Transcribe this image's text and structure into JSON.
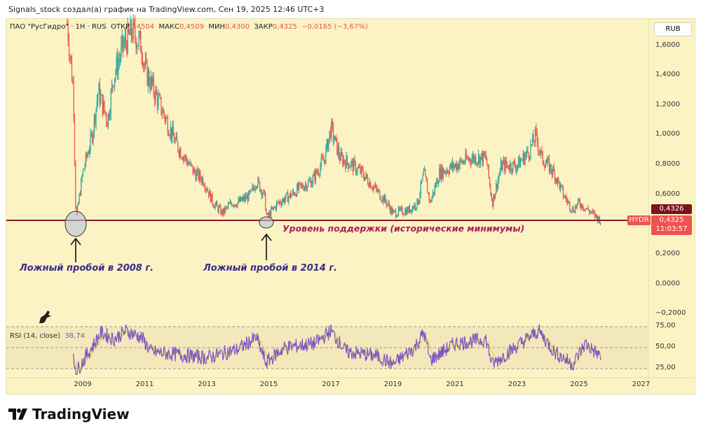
{
  "credit": "Signals_stock создал(а) график на TradingView.com, Сен 19, 2025 12:46 UTC+3",
  "legend": {
    "symbol": "ПАО \"РусГидро\" · 1H · RUS",
    "open_label": "ОТКР",
    "open": "0,4504",
    "high_label": "МАКС",
    "high": "0,4509",
    "low_label": "МИН",
    "low": "0,4300",
    "close_label": "ЗАКР",
    "close": "0,4325",
    "change": "−0,0165 (−3,67%)"
  },
  "currency": "RUB",
  "price_ticks": [
    "1,6000",
    "1,4000",
    "1,2000",
    "1,0000",
    "0,8000",
    "0,6000",
    "0,2000",
    "0,0000",
    "−0,2000"
  ],
  "last_price_prev": "0,4326",
  "ticker_tag": "HYDR",
  "last_price": "0,4325",
  "countdown": "11:03:57",
  "rsi": {
    "label": "RSI (14, close)",
    "value": "38,74",
    "ticks": [
      "75,00",
      "50,00",
      "25,00"
    ]
  },
  "time_ticks": [
    "2009",
    "2011",
    "2013",
    "2015",
    "2017",
    "2019",
    "2021",
    "2023",
    "2025",
    "2027"
  ],
  "annotations": {
    "false_break_2008": "Ложный пробой в 2008 г.",
    "false_break_2014": "Ложный пробой в 2014 г.",
    "support": "Уровень поддержки (исторические минимумы)"
  },
  "brand": "TradingView",
  "colors": {
    "up": "#26a69a",
    "down": "#ef5350",
    "support": "#8b1a2a",
    "rsi": "#7e57c2",
    "rsi_ma": "#f3c623"
  },
  "chart_data": {
    "type": "line",
    "title": "ПАО \"РусГидро\" 1H",
    "ylim": [
      -0.25,
      1.75
    ],
    "support_level": 0.4325,
    "series": [
      {
        "name": "price",
        "points": [
          [
            2008.5,
            1.75
          ],
          [
            2008.7,
            1.3
          ],
          [
            2008.78,
            0.43
          ],
          [
            2009.0,
            0.75
          ],
          [
            2009.3,
            1.0
          ],
          [
            2009.5,
            1.3
          ],
          [
            2009.8,
            1.1
          ],
          [
            2010.0,
            1.4
          ],
          [
            2010.3,
            1.6
          ],
          [
            2010.6,
            1.7
          ],
          [
            2010.9,
            1.6
          ],
          [
            2011.0,
            1.45
          ],
          [
            2011.4,
            1.25
          ],
          [
            2011.8,
            1.05
          ],
          [
            2012.0,
            0.95
          ],
          [
            2012.3,
            0.85
          ],
          [
            2012.6,
            0.75
          ],
          [
            2012.9,
            0.7
          ],
          [
            2013.2,
            0.55
          ],
          [
            2013.5,
            0.48
          ],
          [
            2013.8,
            0.55
          ],
          [
            2014.0,
            0.55
          ],
          [
            2014.4,
            0.6
          ],
          [
            2014.6,
            0.7
          ],
          [
            2014.85,
            0.6
          ],
          [
            2014.93,
            0.45
          ],
          [
            2015.3,
            0.55
          ],
          [
            2015.7,
            0.6
          ],
          [
            2016.0,
            0.65
          ],
          [
            2016.4,
            0.7
          ],
          [
            2016.8,
            0.85
          ],
          [
            2017.0,
            1.05
          ],
          [
            2017.3,
            0.85
          ],
          [
            2017.7,
            0.8
          ],
          [
            2018.0,
            0.75
          ],
          [
            2018.4,
            0.65
          ],
          [
            2018.8,
            0.55
          ],
          [
            2019.0,
            0.48
          ],
          [
            2019.5,
            0.5
          ],
          [
            2019.8,
            0.55
          ],
          [
            2020.0,
            0.75
          ],
          [
            2020.2,
            0.55
          ],
          [
            2020.5,
            0.75
          ],
          [
            2021.0,
            0.8
          ],
          [
            2021.5,
            0.85
          ],
          [
            2022.0,
            0.85
          ],
          [
            2022.2,
            0.55
          ],
          [
            2022.5,
            0.8
          ],
          [
            2023.0,
            0.8
          ],
          [
            2023.4,
            0.9
          ],
          [
            2023.6,
            1.0
          ],
          [
            2023.8,
            0.85
          ],
          [
            2024.2,
            0.75
          ],
          [
            2024.5,
            0.6
          ],
          [
            2024.8,
            0.5
          ],
          [
            2025.0,
            0.55
          ],
          [
            2025.3,
            0.5
          ],
          [
            2025.7,
            0.43
          ]
        ]
      },
      {
        "name": "RSI",
        "points": [
          [
            2008.7,
            35
          ],
          [
            2008.8,
            22
          ],
          [
            2009.2,
            45
          ],
          [
            2009.6,
            68
          ],
          [
            2010.0,
            60
          ],
          [
            2010.4,
            70
          ],
          [
            2010.9,
            62
          ],
          [
            2011.2,
            45
          ],
          [
            2012.0,
            42
          ],
          [
            2013.0,
            38
          ],
          [
            2014.0,
            48
          ],
          [
            2014.6,
            62
          ],
          [
            2014.9,
            32
          ],
          [
            2015.5,
            50
          ],
          [
            2016.5,
            55
          ],
          [
            2017.0,
            70
          ],
          [
            2017.5,
            45
          ],
          [
            2018.5,
            40
          ],
          [
            2019.0,
            30
          ],
          [
            2019.7,
            50
          ],
          [
            2020.0,
            68
          ],
          [
            2020.2,
            35
          ],
          [
            2021.0,
            55
          ],
          [
            2022.0,
            60
          ],
          [
            2022.2,
            30
          ],
          [
            2023.0,
            52
          ],
          [
            2023.7,
            70
          ],
          [
            2024.2,
            45
          ],
          [
            2024.8,
            30
          ],
          [
            2025.2,
            55
          ],
          [
            2025.7,
            39
          ]
        ]
      }
    ]
  }
}
